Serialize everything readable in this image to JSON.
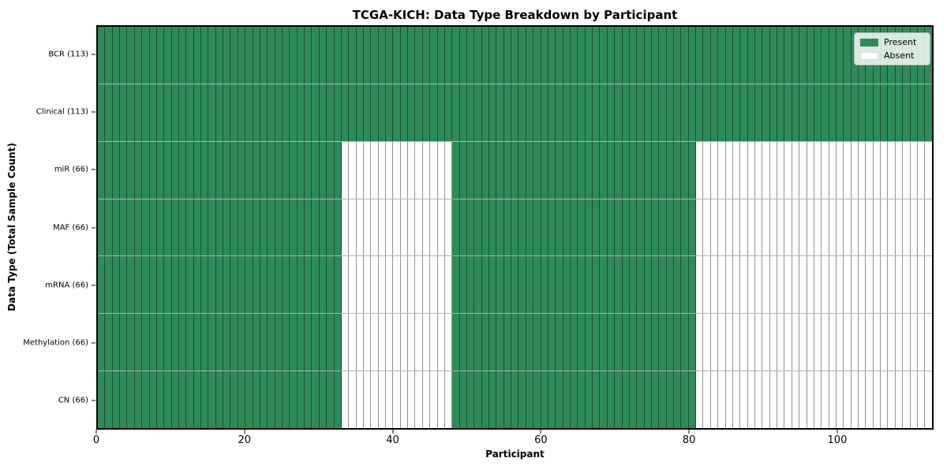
{
  "chart_data": {
    "type": "heatmap",
    "title": "TCGA-KICH: Data Type Breakdown by Participant",
    "xlabel": "Participant",
    "ylabel": "Data Type (Total Sample Count)",
    "xlim": [
      0,
      113
    ],
    "x_ticks": [
      0,
      20,
      40,
      60,
      80,
      100
    ],
    "n_participants": 113,
    "legend": {
      "position": "upper right",
      "entries": [
        {
          "label": "Present",
          "color": "#2e8b57"
        },
        {
          "label": "Absent",
          "color": "#ffffff"
        }
      ]
    },
    "colors": {
      "present": "#2e8b57",
      "absent": "#ffffff",
      "cell_border": "rgba(0,0,0,0.42)",
      "frame": "#000000"
    },
    "rows": [
      {
        "label": "BCR (113)",
        "total_samples": 113,
        "present_ranges": [
          [
            0,
            113
          ]
        ]
      },
      {
        "label": "Clinical (113)",
        "total_samples": 113,
        "present_ranges": [
          [
            0,
            113
          ]
        ]
      },
      {
        "label": "miR (66)",
        "total_samples": 66,
        "present_ranges": [
          [
            0,
            33
          ],
          [
            48,
            81
          ]
        ]
      },
      {
        "label": "MAF (66)",
        "total_samples": 66,
        "present_ranges": [
          [
            0,
            33
          ],
          [
            48,
            81
          ]
        ]
      },
      {
        "label": "mRNA (66)",
        "total_samples": 66,
        "present_ranges": [
          [
            0,
            33
          ],
          [
            48,
            81
          ]
        ]
      },
      {
        "label": "Methylation (66)",
        "total_samples": 66,
        "present_ranges": [
          [
            0,
            33
          ],
          [
            48,
            81
          ]
        ]
      },
      {
        "label": "CN (66)",
        "total_samples": 66,
        "present_ranges": [
          [
            0,
            33
          ],
          [
            48,
            81
          ]
        ]
      }
    ]
  }
}
